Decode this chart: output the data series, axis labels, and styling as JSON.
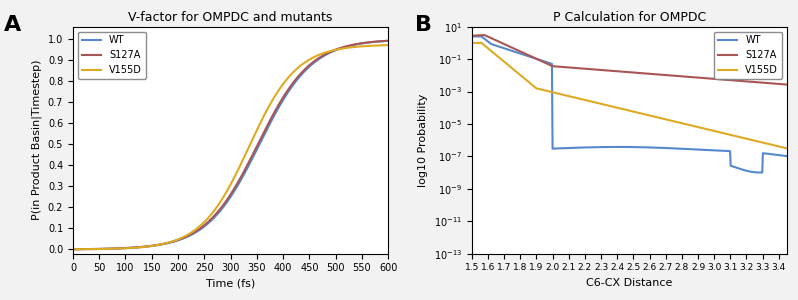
{
  "panel_A": {
    "title": "V-factor for OMPDC and mutants",
    "xlabel": "Time (fs)",
    "ylabel": "P(in Product Basin|Timestep)",
    "xlim": [
      0,
      600
    ],
    "ylim": [
      -0.02,
      1.06
    ],
    "xticks": [
      0,
      50,
      100,
      150,
      200,
      250,
      300,
      350,
      400,
      450,
      500,
      550,
      600
    ],
    "yticks": [
      0.0,
      0.1,
      0.2,
      0.3,
      0.4,
      0.5,
      0.6,
      0.7,
      0.8,
      0.9,
      1.0
    ],
    "colors": {
      "WT": "#5588cc",
      "S127A": "#aa5555",
      "V155D": "#ddaa22"
    },
    "label": "A"
  },
  "panel_B": {
    "title": "P Calculation for OMPDC",
    "xlabel": "C6-CX Distance",
    "ylabel": "log10 Probability",
    "xlim": [
      1.5,
      3.45
    ],
    "xtick_vals": [
      1.5,
      1.6,
      1.7,
      1.8,
      1.9,
      2.0,
      2.1,
      2.2,
      2.3,
      2.4,
      2.5,
      2.6,
      2.7,
      2.8,
      2.9,
      3.0,
      3.1,
      3.2,
      3.3,
      3.4
    ],
    "colors": {
      "WT": "#5588cc",
      "S127A": "#aa5555",
      "V155D": "#ddaa22"
    },
    "label": "B"
  },
  "background_color": "#f2f2f2",
  "axes_color": "#ffffff",
  "line_width": 1.5
}
